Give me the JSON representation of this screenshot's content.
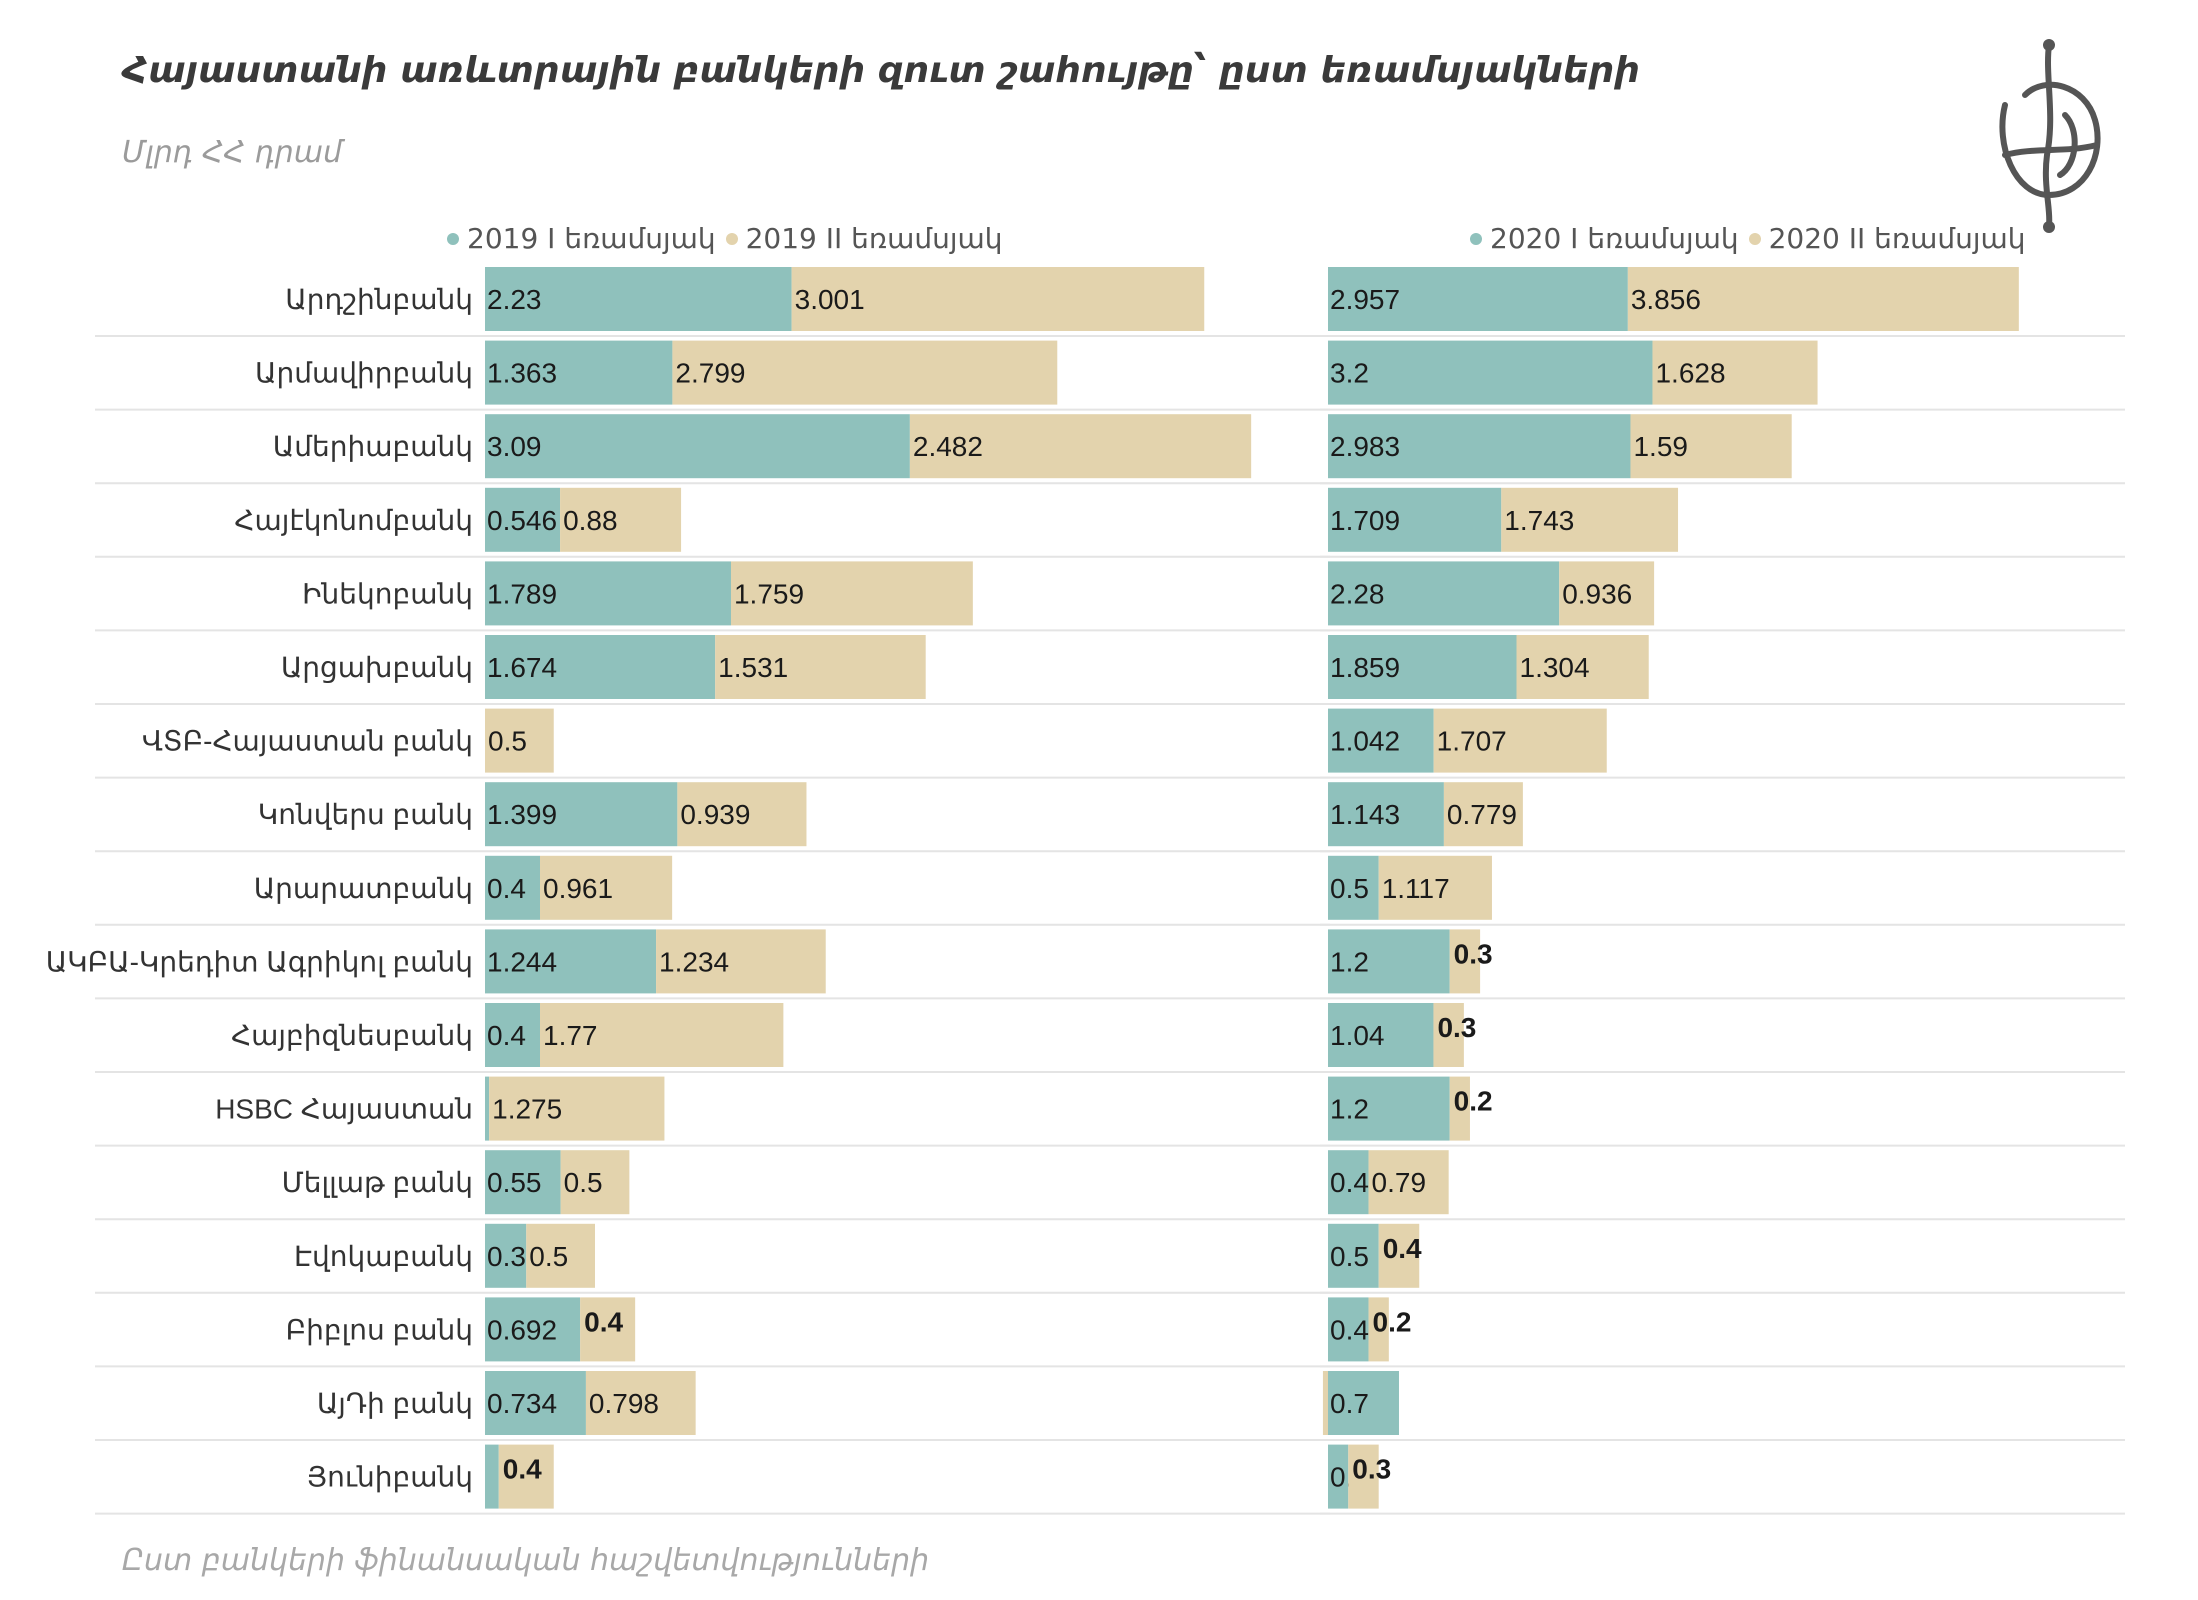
{
  "title": "Հայաստանի առևտրային բանկերի զուտ շահույթը՝ ըստ եռամսյակների",
  "subtitle": "Մլրդ ՀՀ դրամ",
  "footer": "Ըստ բանկերի ֆինանսական հաշվետվությունների",
  "colors": {
    "q1": "#8fc1bc",
    "q2": "#e3d3ad"
  },
  "chart_data": [
    {
      "type": "bar",
      "orientation": "horizontal",
      "stacked": true,
      "categories": [
        "Արդշինբանկ",
        "Արմավիրբանկ",
        "Ամերիաբանկ",
        "Հայէկոնոմբանկ",
        "Ինեկոբանկ",
        "Արցախբանկ",
        "ՎՏԲ-Հայաստան բանկ",
        "Կոնվերս բանկ",
        "Արարատբանկ",
        "ԱԿԲԱ-Կրեդիտ Ագրիկոլ բանկ",
        "Հայբիզնեսբանկ",
        "HSBC Հայաստան",
        "Մելլաթ բանկ",
        "Էվոկաբանկ",
        "Բիբլոս բանկ",
        "ԱյԴի բանկ",
        "Յունիբանկ"
      ],
      "series": [
        {
          "name": "2019 I եռամսյակ",
          "values": [
            2.23,
            1.363,
            3.09,
            0.546,
            1.789,
            1.674,
            null,
            1.399,
            0.4,
            1.244,
            0.4,
            0.03,
            0.55,
            0.3,
            0.692,
            0.734,
            0.1
          ],
          "labels": [
            "2.23",
            "1.363",
            "3.09",
            "0.546",
            "1.789",
            "1.674",
            "",
            "1.399",
            "0.4",
            "1.244",
            "0.4",
            "",
            "0.55",
            "0.3",
            "0.692",
            "0.734",
            ""
          ]
        },
        {
          "name": "2019 II եռամսյակ",
          "values": [
            3.001,
            2.799,
            2.482,
            0.88,
            1.759,
            1.531,
            0.5,
            0.939,
            0.961,
            1.234,
            1.77,
            1.275,
            0.5,
            0.5,
            0.4,
            0.798,
            0.4
          ],
          "labels": [
            "3.001",
            "2.799",
            "2.482",
            "0.88",
            "1.759",
            "1.531",
            "0.5",
            "0.939",
            "0.961",
            "1.234",
            "1.77",
            "1.275",
            "0.5",
            "0.5",
            "0.4",
            "0.798",
            "0.4"
          ]
        }
      ]
    },
    {
      "type": "bar",
      "orientation": "horizontal",
      "stacked": true,
      "categories": [
        "Արդշինբանկ",
        "Արմավիրբանկ",
        "Ամերիաբանկ",
        "Հայէկոնոմբանկ",
        "Ինեկոբանկ",
        "Արցախբանկ",
        "ՎՏԲ-Հայաստան բանկ",
        "Կոնվերս բանկ",
        "Արարատբանկ",
        "ԱԿԲԱ-Կրեդիտ Ագրիկոլ բանկ",
        "Հայբիզնեսբանկ",
        "HSBC Հայաստան",
        "Մելլաթ բանկ",
        "Էվոկաբանկ",
        "Բիբլոս բանկ",
        "ԱյԴի բանկ",
        "Յունիբանկ"
      ],
      "series": [
        {
          "name": "2020 I եռամսյակ",
          "values": [
            2.957,
            3.2,
            2.983,
            1.709,
            2.28,
            1.859,
            1.042,
            1.143,
            0.5,
            1.2,
            1.04,
            1.2,
            0.4,
            0.5,
            0.4,
            0.7,
            0.2
          ],
          "labels": [
            "2.957",
            "3.2",
            "2.983",
            "1.709",
            "2.28",
            "1.859",
            "1.042",
            "1.143",
            "0.5",
            "1.2",
            "1.04",
            "1.2",
            "0.4",
            "0.5",
            "0.4",
            "0.7",
            "0.2"
          ]
        },
        {
          "name": "2020 II եռամսյակ",
          "values": [
            3.856,
            1.628,
            1.59,
            1.743,
            0.936,
            1.304,
            1.707,
            0.779,
            1.117,
            0.3,
            0.3,
            0.2,
            0.79,
            0.4,
            0.2,
            -0.05,
            0.3
          ],
          "labels": [
            "3.856",
            "1.628",
            "1.59",
            "1.743",
            "0.936",
            "1.304",
            "1.707",
            "0.779",
            "1.117",
            "0.3",
            "0.3",
            "0.2",
            "0.79",
            "0.4",
            "0.2",
            "",
            "0.3"
          ]
        }
      ]
    }
  ]
}
